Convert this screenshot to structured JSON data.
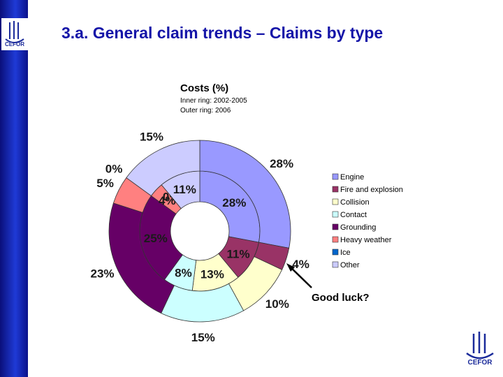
{
  "slide": {
    "title": "3.a. General claim trends – Claims by type",
    "annotation": "Good luck?"
  },
  "chart_data": {
    "type": "pie",
    "variant": "double-donut",
    "title": "Costs (%)",
    "subtitle_lines": [
      "Inner ring:   2002-2005",
      "Outer ring:   2006"
    ],
    "categories": [
      "Engine",
      "Fire and explosion",
      "Collision",
      "Contact",
      "Grounding",
      "Heavy weather",
      "Ice",
      "Other"
    ],
    "colors": [
      "#9999ff",
      "#993366",
      "#ffffcc",
      "#ccffff",
      "#660066",
      "#ff8080",
      "#0066cc",
      "#ccccff"
    ],
    "series": [
      {
        "name": "Inner ring: 2002-2005",
        "values": [
          28,
          11,
          13,
          8,
          25,
          4,
          0,
          11
        ],
        "labels": [
          "28%",
          "11%",
          "13%",
          "8%",
          "25%",
          "4%",
          "0%",
          "11%"
        ]
      },
      {
        "name": "Outer ring: 2006",
        "values": [
          28,
          4,
          10,
          15,
          23,
          5,
          0,
          15
        ],
        "labels": [
          "28%",
          "4%",
          "10%",
          "15%",
          "23%",
          "5%",
          "0%",
          "15%"
        ]
      }
    ],
    "legend_position": "right"
  }
}
